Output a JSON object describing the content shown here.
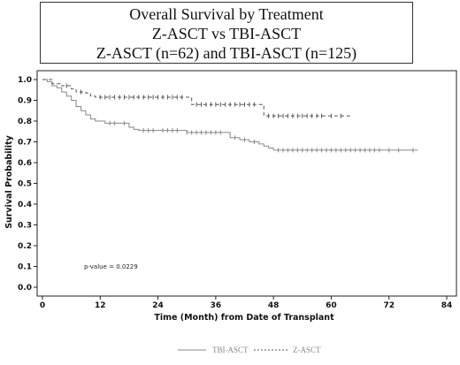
{
  "chart_data": {
    "type": "line",
    "title": [
      "Overall Survival by Treatment",
      "Z-ASCT vs TBI-ASCT",
      "Z-ASCT (n=62) and TBI-ASCT (n=125)"
    ],
    "xlabel": "Time (Month) from Date of Transplant",
    "ylabel": "Survival Probability",
    "xlim": [
      0,
      84
    ],
    "ylim": [
      0,
      1
    ],
    "xticks": [
      "0",
      "12",
      "24",
      "36",
      "48",
      "60",
      "72",
      "84"
    ],
    "yticks": [
      "0.0",
      "0.1",
      "0.2",
      "0.3",
      "0.4",
      "0.5",
      "0.6",
      "0.7",
      "0.8",
      "0.9",
      "1.0"
    ],
    "annotation": "p-value = 0.0229",
    "legend": {
      "position": "bottom",
      "entries": [
        "TBI-ASCT",
        "Z-ASCT"
      ]
    },
    "series": [
      {
        "name": "TBI-ASCT",
        "style": "solid",
        "color": "#888888",
        "step_points": [
          [
            0,
            1.0
          ],
          [
            1,
            0.99
          ],
          [
            2,
            0.97
          ],
          [
            3,
            0.96
          ],
          [
            4,
            0.94
          ],
          [
            5,
            0.92
          ],
          [
            6,
            0.9
          ],
          [
            7,
            0.87
          ],
          [
            8,
            0.85
          ],
          [
            9,
            0.83
          ],
          [
            10,
            0.81
          ],
          [
            11,
            0.8
          ],
          [
            13,
            0.79
          ],
          [
            16,
            0.79
          ],
          [
            18,
            0.77
          ],
          [
            19,
            0.76
          ],
          [
            20,
            0.755
          ],
          [
            29,
            0.755
          ],
          [
            30,
            0.745
          ],
          [
            38,
            0.745
          ],
          [
            39,
            0.72
          ],
          [
            41,
            0.71
          ],
          [
            43,
            0.7
          ],
          [
            45,
            0.69
          ],
          [
            46,
            0.68
          ],
          [
            47,
            0.67
          ],
          [
            48,
            0.66
          ],
          [
            78,
            0.66
          ]
        ],
        "censor_x": [
          14,
          15,
          17,
          21,
          22,
          23,
          25,
          26,
          27,
          28,
          30,
          31,
          32,
          33,
          34,
          35,
          36,
          37,
          40,
          42,
          44,
          49,
          50,
          51,
          52,
          53,
          54,
          55,
          56,
          57,
          58,
          59,
          60,
          61,
          62,
          63,
          64,
          65,
          66,
          67,
          68,
          69,
          70,
          72,
          74,
          77
        ]
      },
      {
        "name": "Z-ASCT",
        "style": "dashed",
        "color": "#555555",
        "step_points": [
          [
            0,
            1.0
          ],
          [
            2,
            0.98
          ],
          [
            4,
            0.97
          ],
          [
            6,
            0.955
          ],
          [
            7,
            0.94
          ],
          [
            9,
            0.935
          ],
          [
            10,
            0.92
          ],
          [
            11,
            0.915
          ],
          [
            30,
            0.915
          ],
          [
            31,
            0.88
          ],
          [
            45,
            0.88
          ],
          [
            46,
            0.825
          ],
          [
            64,
            0.825
          ]
        ],
        "censor_x": [
          5,
          8,
          12,
          13,
          14,
          15,
          16,
          17,
          18,
          19,
          20,
          21,
          22,
          23,
          24,
          25,
          26,
          27,
          28,
          29,
          32,
          33,
          34,
          35,
          36,
          37,
          38,
          39,
          40,
          41,
          42,
          43,
          44,
          47,
          48,
          49,
          50,
          51,
          52,
          53,
          54,
          55,
          56,
          57,
          58,
          60,
          62
        ]
      }
    ]
  }
}
